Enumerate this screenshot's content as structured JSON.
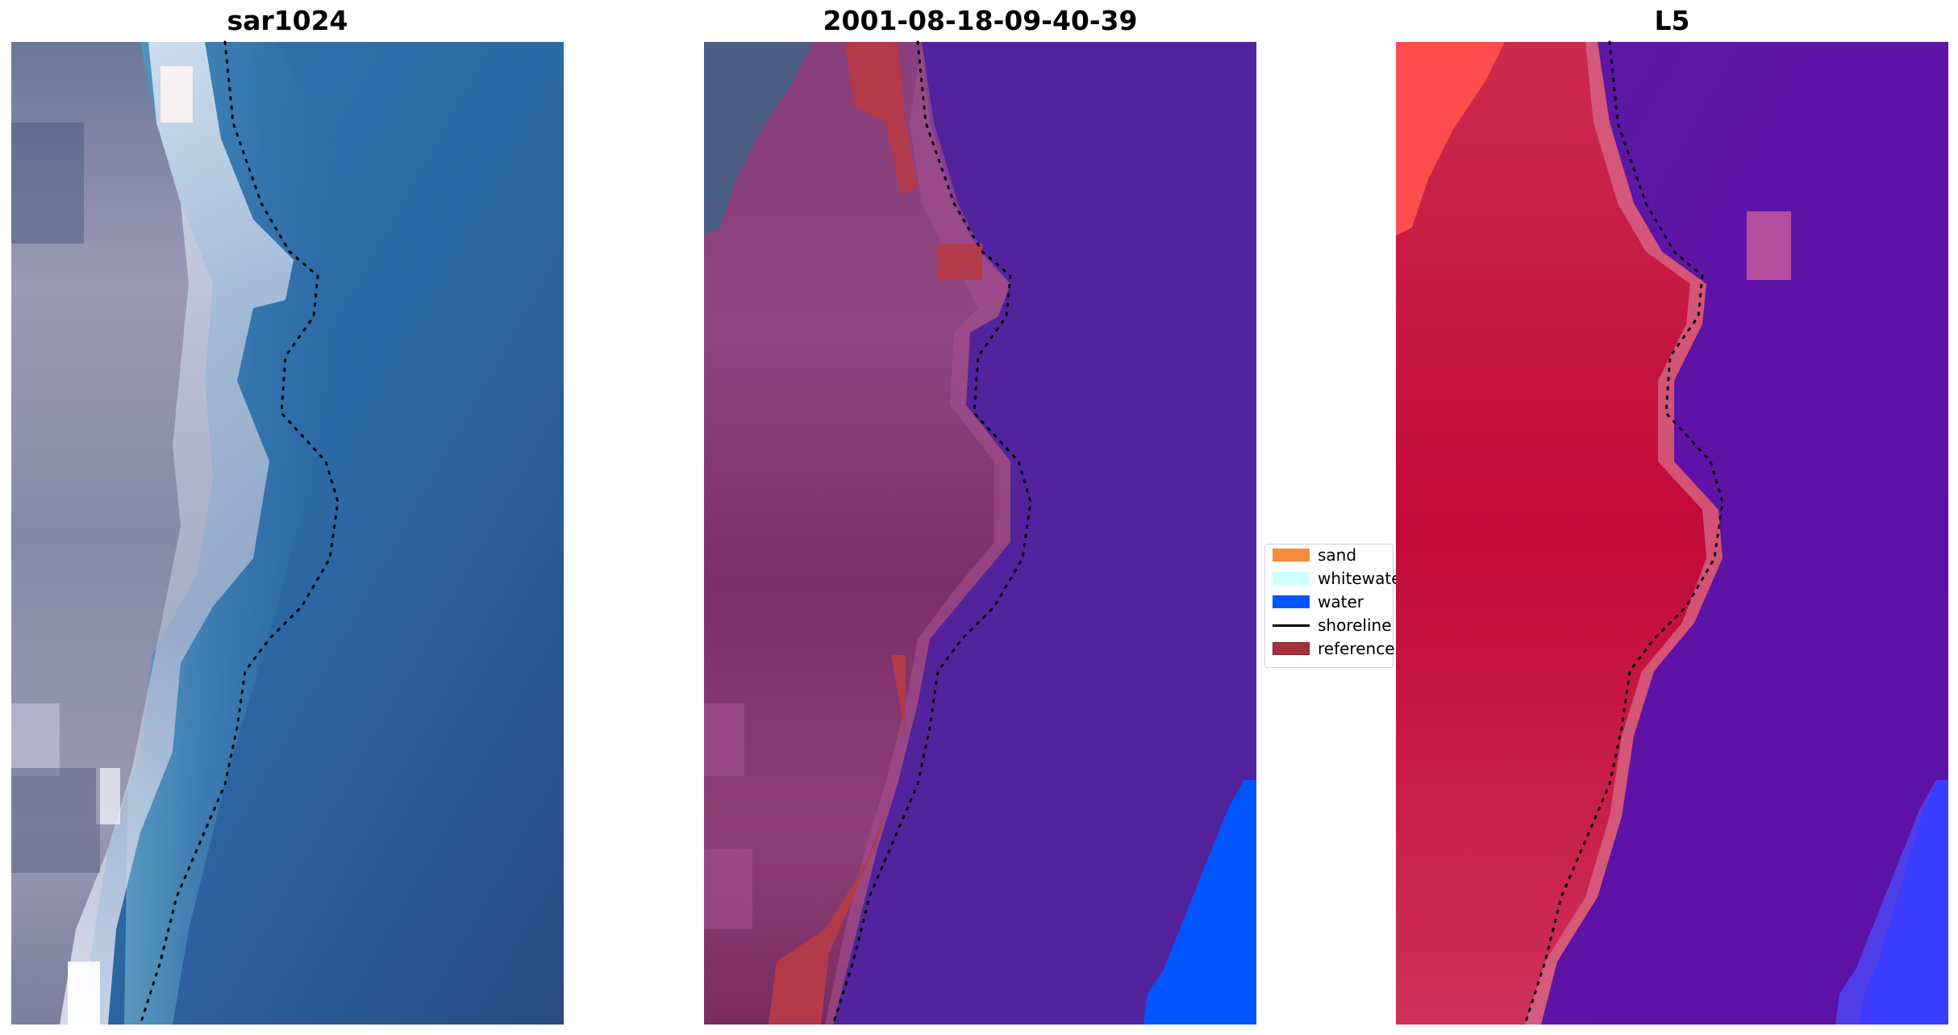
{
  "panels": [
    {
      "title": "sar1024"
    },
    {
      "title": "2001-08-18-09-40-39"
    },
    {
      "title": "L5"
    }
  ],
  "legend": {
    "items": [
      {
        "label": "sand",
        "color": "#f58b3b",
        "kind": "patch"
      },
      {
        "label": "whitewater",
        "color": "#ccffff",
        "kind": "patch"
      },
      {
        "label": "water",
        "color": "#0055ff",
        "kind": "patch"
      },
      {
        "label": "shoreline",
        "color": "#000000",
        "kind": "line"
      },
      {
        "label": "reference",
        "color": "#a2333d",
        "kind": "patch"
      }
    ]
  },
  "colors": {
    "ocean": "#2d6ba8",
    "ocean_deep": "#2b4d85",
    "land_gray": "#7b7f9c",
    "surf_white": "#f0f4ff",
    "classified_water": "#53239d",
    "classified_land": "#883d76",
    "reference_red": "#b33a4b",
    "bright_water": "#0055ff",
    "l5_land": "#c41443",
    "l5_water": "#5a12a5",
    "l5_bright": "#ff4d4d"
  }
}
